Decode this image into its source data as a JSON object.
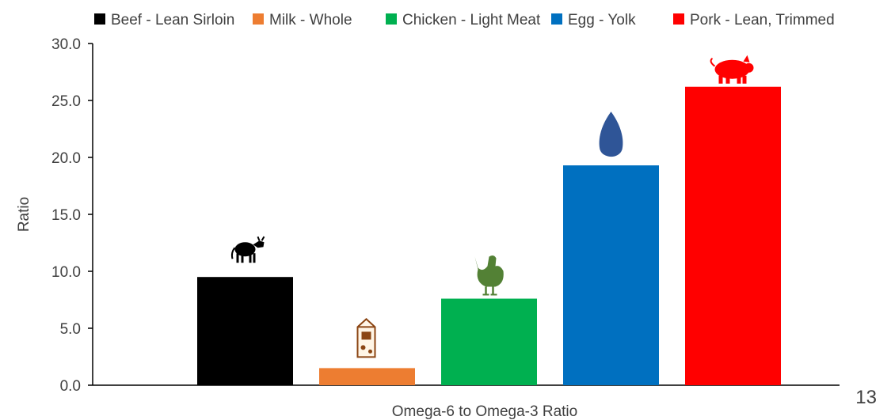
{
  "page_number": "13",
  "chart_data": {
    "type": "bar",
    "title": "",
    "xlabel": "Omega-6 to Omega-3 Ratio",
    "ylabel": "Ratio",
    "ylim": [
      0,
      30
    ],
    "yticks": [
      "0.0",
      "5.0",
      "10.0",
      "15.0",
      "20.0",
      "25.0",
      "30.0"
    ],
    "grid": false,
    "legend_position": "top",
    "series": [
      {
        "name": "Beef - Lean Sirloin",
        "value": 9.5,
        "color": "#000000",
        "icon": "cow-icon"
      },
      {
        "name": "Milk - Whole",
        "value": 1.5,
        "color": "#ED7D31",
        "icon": "milk-carton-icon"
      },
      {
        "name": "Chicken - Light Meat",
        "value": 7.6,
        "color": "#00B050",
        "icon": "chicken-icon"
      },
      {
        "name": "Egg - Yolk",
        "value": 19.3,
        "color": "#0070C0",
        "icon": "egg-icon"
      },
      {
        "name": "Pork - Lean, Trimmed",
        "value": 26.2,
        "color": "#FF0000",
        "icon": "pig-icon"
      }
    ]
  }
}
